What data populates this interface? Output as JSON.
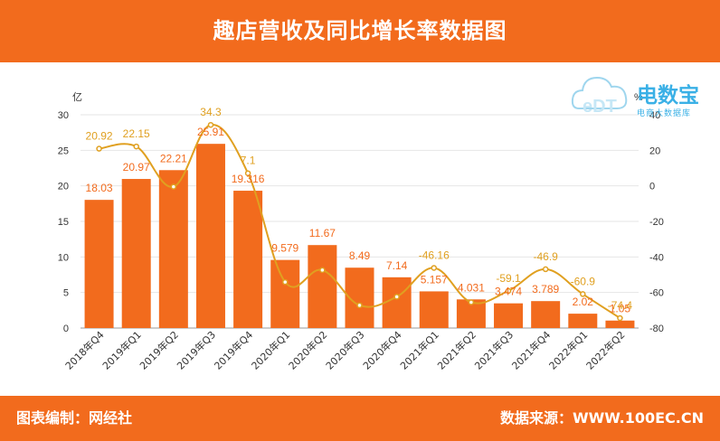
{
  "header": {
    "title": "趣店营收及同比增长率数据图"
  },
  "footer": {
    "editor": "图表编制：网经社",
    "source": "数据来源：WWW.100EC.CN"
  },
  "logo": {
    "name": "电数宝",
    "subtitle": "电商大数据库",
    "mark": "eDT"
  },
  "colors": {
    "bar": "#f26b1d",
    "line": "#e0a020",
    "bar_label": "#f26b1d",
    "line_label": "#e0a020"
  },
  "chart_data": {
    "type": "bar",
    "categories": [
      "2018年Q4",
      "2019年Q1",
      "2019年Q2",
      "2019年Q3",
      "2019年Q4",
      "2020年Q1",
      "2020年Q2",
      "2020年Q3",
      "2020年Q4",
      "2021年Q1",
      "2021年Q2",
      "2021年Q3",
      "2021年Q4",
      "2022年Q1",
      "2022年Q2"
    ],
    "series": [
      {
        "values": [
          18.03,
          20.97,
          22.21,
          25.91,
          19.316,
          9.579,
          11.67,
          8.49,
          7.14,
          5.157,
          4.031,
          3.474,
          3.789,
          2.02,
          1.05
        ],
        "labels": [
          "18.03",
          "20.97",
          "22.21",
          "25.91",
          "19.316",
          "9.579",
          "11.67",
          "8.49",
          "7.14",
          "5.157",
          "4.031",
          "3.474",
          "3.789",
          "2.02",
          "1.05"
        ],
        "axis": "left",
        "kind": "bar"
      },
      {
        "values": [
          20.92,
          22.15,
          -0.46,
          34.3,
          7.1,
          -54.1,
          -47.4,
          -67.2,
          -62.4,
          -46.16,
          -65.5,
          -59.1,
          -46.9,
          -60.9,
          -74.4
        ],
        "labels": [
          "20.92",
          "22.15",
          "",
          "34.3",
          "7.1",
          "",
          "",
          "",
          "",
          "-46.16",
          "",
          "-59.1",
          "-46.9",
          "-60.9",
          "-74.4"
        ],
        "axis": "right",
        "kind": "line"
      }
    ],
    "y_left": {
      "unit": "亿",
      "ylim": [
        0,
        30
      ],
      "ticks": [
        "0",
        "5",
        "10",
        "15",
        "20",
        "25",
        "30"
      ]
    },
    "y_right": {
      "unit": "%",
      "ylim": [
        -80,
        40
      ],
      "ticks": [
        "-80",
        "-60",
        "-40",
        "-20",
        "0",
        "20",
        "40"
      ]
    },
    "grid": true
  }
}
